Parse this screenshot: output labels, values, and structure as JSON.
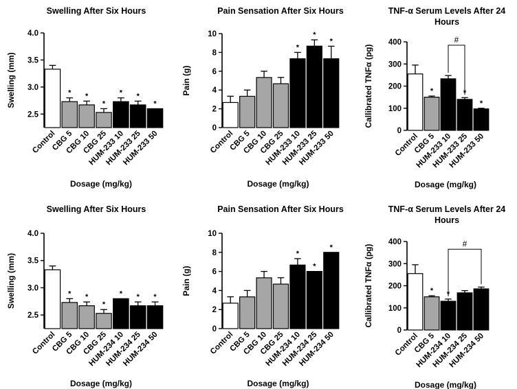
{
  "figure": {
    "colors": {
      "control": "#ffffff",
      "cbg": "#a6a6a6",
      "hum": "#000000",
      "axis": "#000000"
    }
  },
  "chart_data": [
    {
      "type": "bar",
      "title": "Swelling After Six Hours",
      "xlabel": "Dosage (mg/kg)",
      "ylabel": "Swelling (mm)",
      "ylim": [
        2.25,
        4.0
      ],
      "yticks": [
        2.5,
        3.0,
        3.5,
        4.0
      ],
      "ytick_labels": [
        "2.5",
        "3.0",
        "3.5",
        "4.0"
      ],
      "categories": [
        "Control",
        "CBG 5",
        "CBG 10",
        "CBG 25",
        "HUM-233 10",
        "HUM-233 25",
        "HUM-233 50"
      ],
      "groups": [
        "control",
        "cbg",
        "cbg",
        "cbg",
        "hum",
        "hum",
        "hum"
      ],
      "values": [
        3.33,
        2.73,
        2.67,
        2.53,
        2.73,
        2.67,
        2.6
      ],
      "errors": [
        0.07,
        0.07,
        0.07,
        0.07,
        0.07,
        0.07,
        0.0
      ],
      "annotations": [
        "",
        "*",
        "*",
        "*",
        "*",
        "*",
        "*"
      ]
    },
    {
      "type": "bar",
      "title": "Pain Sensation After Six Hours",
      "xlabel": "Dosage (mg/kg)",
      "ylabel": "Pain (g)",
      "ylim": [
        0,
        10
      ],
      "yticks": [
        0,
        2,
        4,
        6,
        8,
        10
      ],
      "ytick_labels": [
        "0",
        "2",
        "4",
        "6",
        "8",
        "10"
      ],
      "categories": [
        "Control",
        "CBG 5",
        "CBG 10",
        "CBG 25",
        "HUM-233 10",
        "HUM-233 25",
        "HUM-233 50"
      ],
      "groups": [
        "control",
        "cbg",
        "cbg",
        "cbg",
        "hum",
        "hum",
        "hum"
      ],
      "values": [
        2.67,
        3.33,
        5.33,
        4.67,
        7.33,
        8.67,
        7.33
      ],
      "errors": [
        0.67,
        0.67,
        0.67,
        0.67,
        0.67,
        0.67,
        1.33
      ],
      "annotations": [
        "",
        "",
        "",
        "",
        "*",
        "*",
        "*"
      ]
    },
    {
      "type": "bar",
      "title": "TNF-α Serum Levels After 24 Hours",
      "title_lines": [
        "TNF-α Serum Levels After 24",
        "Hours"
      ],
      "xlabel": "Dosage (mg/kg)",
      "ylabel": "Callibrated TNFα (pg)",
      "ylim": [
        0,
        400
      ],
      "yticks": [
        0,
        100,
        200,
        300,
        400
      ],
      "ytick_labels": [
        "0",
        "100",
        "200",
        "300",
        "400"
      ],
      "categories": [
        "Control",
        "CBG 5",
        "HUM-233 10",
        "HUM-233 25",
        "HUM-233 50"
      ],
      "groups": [
        "control",
        "cbg",
        "hum",
        "hum",
        "hum"
      ],
      "values": [
        255,
        150,
        233,
        140,
        97
      ],
      "errors": [
        40,
        5,
        15,
        8,
        3
      ],
      "annotations": [
        "",
        "*",
        "",
        "*",
        "*"
      ],
      "bracket": {
        "label": "#",
        "from": 2,
        "to": 3,
        "y": 385
      }
    },
    {
      "type": "bar",
      "title": "Swelling After Six Hours",
      "xlabel": "Dosage (mg/kg)",
      "ylabel": "Swelling (mm)",
      "ylim": [
        2.25,
        4.0
      ],
      "yticks": [
        2.5,
        3.0,
        3.5,
        4.0
      ],
      "ytick_labels": [
        "2.5",
        "3.0",
        "3.5",
        "4.0"
      ],
      "categories": [
        "Control",
        "CBG 5",
        "CBG 10",
        "CBG 25",
        "HUM-234 10",
        "HUM-234 25",
        "HUM-234 50"
      ],
      "groups": [
        "control",
        "cbg",
        "cbg",
        "cbg",
        "hum",
        "hum",
        "hum"
      ],
      "values": [
        3.33,
        2.73,
        2.67,
        2.53,
        2.8,
        2.67,
        2.67
      ],
      "errors": [
        0.07,
        0.07,
        0.07,
        0.07,
        0.0,
        0.07,
        0.07
      ],
      "annotations": [
        "",
        "*",
        "*",
        "*",
        "*",
        "*",
        "*"
      ]
    },
    {
      "type": "bar",
      "title": "Pain Sensation After Six Hours",
      "xlabel": "Dosage (mg/kg)",
      "ylabel": "Pain (g)",
      "ylim": [
        0,
        10
      ],
      "yticks": [
        0,
        2,
        4,
        6,
        8,
        10
      ],
      "ytick_labels": [
        "0",
        "2",
        "4",
        "6",
        "8",
        "10"
      ],
      "categories": [
        "Control",
        "CBG 5",
        "CBG 10",
        "CBG 25",
        "HUM-234 10",
        "HUM-234 25",
        "HUM-234 50"
      ],
      "groups": [
        "control",
        "cbg",
        "cbg",
        "cbg",
        "hum",
        "hum",
        "hum"
      ],
      "values": [
        2.67,
        3.33,
        5.33,
        4.67,
        6.67,
        6.0,
        8.0
      ],
      "errors": [
        0.67,
        0.67,
        0.67,
        0.67,
        0.67,
        0.0,
        0.0
      ],
      "annotations": [
        "",
        "",
        "",
        "",
        "*",
        "*",
        "*"
      ]
    },
    {
      "type": "bar",
      "title": "TNF-α Serum Levels After 24 Hours",
      "title_lines": [
        "TNF-α Serum Levels After 24",
        "Hours"
      ],
      "xlabel": "Dosage (mg/kg)",
      "ylabel": "Callibrated TNFα (pg)",
      "ylim": [
        0,
        400
      ],
      "yticks": [
        0,
        100,
        200,
        300,
        400
      ],
      "ytick_labels": [
        "0",
        "100",
        "200",
        "300",
        "400"
      ],
      "categories": [
        "Control",
        "CBG 5",
        "HUM-234 10",
        "HUM-234 25",
        "HUM-234 50"
      ],
      "groups": [
        "control",
        "cbg",
        "hum",
        "hum",
        "hum"
      ],
      "values": [
        255,
        150,
        130,
        168,
        186
      ],
      "errors": [
        40,
        5,
        10,
        10,
        8
      ],
      "annotations": [
        "",
        "*",
        "*",
        "",
        ""
      ],
      "bracket": {
        "label": "#",
        "from": 2,
        "to": 4,
        "y": 365
      }
    }
  ]
}
